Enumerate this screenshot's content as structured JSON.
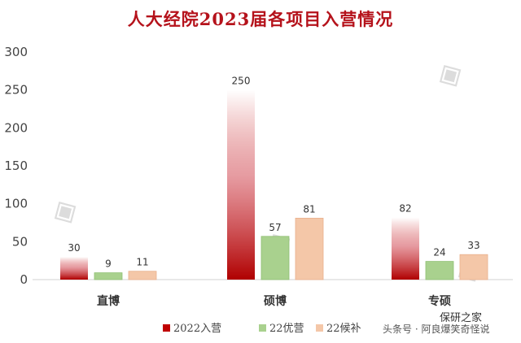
{
  "chart_data": {
    "type": "bar",
    "title": "人大经院2023届各项目入营情况",
    "categories": [
      "直博",
      "硕博",
      "专硕"
    ],
    "series": [
      {
        "name": "2022入营",
        "values": [
          30,
          250,
          82
        ],
        "color": "#c00000"
      },
      {
        "name": "22优营",
        "values": [
          9,
          57,
          24
        ],
        "color": "#a9d18e"
      },
      {
        "name": "22候补",
        "values": [
          11,
          81,
          33
        ],
        "color": "#f4c7a8"
      }
    ],
    "ylim": [
      0,
      300
    ],
    "yticks": [
      "0",
      "50",
      "100",
      "150",
      "200",
      "250",
      "300"
    ],
    "grid": false,
    "legend": "bottom"
  },
  "footer": {
    "source": "头条号 · 阿良爆笑奇怪说",
    "logo": "保研之家"
  }
}
